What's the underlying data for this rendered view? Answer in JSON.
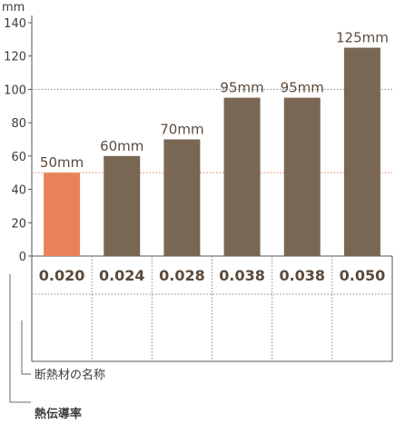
{
  "chart_data": {
    "type": "bar",
    "unit": "mm",
    "ylim": [
      0,
      140
    ],
    "yticks": [
      0,
      20,
      40,
      60,
      80,
      100,
      120,
      140
    ],
    "categories": [
      "0.020",
      "0.024",
      "0.028",
      "0.038",
      "0.038",
      "0.050"
    ],
    "values": [
      50,
      60,
      70,
      95,
      95,
      125
    ],
    "data_labels": [
      "50mm",
      "60mm",
      "70mm",
      "95mm",
      "95mm",
      "125mm"
    ],
    "highlight_index": 0,
    "reference_lines": [
      50,
      100
    ],
    "colors": {
      "highlight": "#e8835a",
      "bar": "#7a6753",
      "text": "#5a4a3c",
      "highlight_text": "#e8835a"
    },
    "legend": {
      "name_row": "断熱材の名称",
      "conductivity_row": "熱伝導率"
    }
  }
}
